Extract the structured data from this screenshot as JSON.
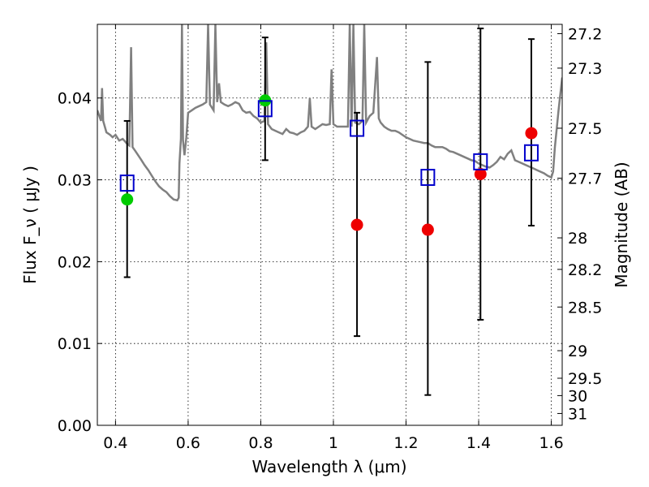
{
  "chart_data": {
    "type": "scatter",
    "xlabel": "Wavelength  λ (μm)",
    "ylabel": "Flux  F_ν  ( μJy )",
    "ylabel_right": "Magnitude (AB)",
    "xlim": [
      0.35,
      1.63
    ],
    "ylim": [
      0.0,
      0.049
    ],
    "grid": true,
    "x_ticks": [
      {
        "v": 0.4,
        "label": "0.4"
      },
      {
        "v": 0.6,
        "label": "0.6"
      },
      {
        "v": 0.8,
        "label": "0.8"
      },
      {
        "v": 1.0,
        "label": "1"
      },
      {
        "v": 1.2,
        "label": "1.2"
      },
      {
        "v": 1.4,
        "label": "1.4"
      },
      {
        "v": 1.6,
        "label": "1.6"
      }
    ],
    "y_ticks": [
      {
        "v": 0.0,
        "label": "0.00"
      },
      {
        "v": 0.01,
        "label": "0.01"
      },
      {
        "v": 0.02,
        "label": "0.02"
      },
      {
        "v": 0.03,
        "label": "0.03"
      },
      {
        "v": 0.04,
        "label": "0.04"
      }
    ],
    "mag_ticks": [
      {
        "mag": 27.2,
        "label": "27.2"
      },
      {
        "mag": 27.3,
        "label": "27.3"
      },
      {
        "mag": 27.5,
        "label": "27.5"
      },
      {
        "mag": 27.7,
        "label": "27.7"
      },
      {
        "mag": 28,
        "label": "28"
      },
      {
        "mag": 28.2,
        "label": "28.2"
      },
      {
        "mag": 28.5,
        "label": "28.5"
      },
      {
        "mag": 29,
        "label": "29"
      },
      {
        "mag": 29.5,
        "label": "29.5"
      },
      {
        "mag": 30,
        "label": "30"
      },
      {
        "mag": 31,
        "label": "31"
      }
    ],
    "series": [
      {
        "kind": "line",
        "color": "#808080",
        "points": [
          [
            0.35,
            0.0385
          ],
          [
            0.36,
            0.0372
          ],
          [
            0.363,
            0.0412
          ],
          [
            0.366,
            0.0372
          ],
          [
            0.375,
            0.0358
          ],
          [
            0.385,
            0.0355
          ],
          [
            0.392,
            0.0352
          ],
          [
            0.4,
            0.0355
          ],
          [
            0.41,
            0.0348
          ],
          [
            0.42,
            0.035
          ],
          [
            0.43,
            0.0345
          ],
          [
            0.438,
            0.0342
          ],
          [
            0.443,
            0.0462
          ],
          [
            0.447,
            0.034
          ],
          [
            0.455,
            0.0335
          ],
          [
            0.47,
            0.0325
          ],
          [
            0.48,
            0.0318
          ],
          [
            0.49,
            0.0312
          ],
          [
            0.5,
            0.0305
          ],
          [
            0.51,
            0.0298
          ],
          [
            0.52,
            0.0292
          ],
          [
            0.53,
            0.0288
          ],
          [
            0.54,
            0.0285
          ],
          [
            0.55,
            0.028
          ],
          [
            0.56,
            0.0276
          ],
          [
            0.57,
            0.0275
          ],
          [
            0.574,
            0.0278
          ],
          [
            0.576,
            0.032
          ],
          [
            0.58,
            0.035
          ],
          [
            0.583,
            0.049
          ],
          [
            0.586,
            0.0348
          ],
          [
            0.59,
            0.033
          ],
          [
            0.595,
            0.0352
          ],
          [
            0.6,
            0.0382
          ],
          [
            0.61,
            0.0385
          ],
          [
            0.62,
            0.0388
          ],
          [
            0.63,
            0.039
          ],
          [
            0.64,
            0.0392
          ],
          [
            0.65,
            0.0395
          ],
          [
            0.655,
            0.049
          ],
          [
            0.66,
            0.0392
          ],
          [
            0.67,
            0.0385
          ],
          [
            0.675,
            0.049
          ],
          [
            0.68,
            0.0395
          ],
          [
            0.685,
            0.0418
          ],
          [
            0.69,
            0.0395
          ],
          [
            0.7,
            0.0392
          ],
          [
            0.71,
            0.039
          ],
          [
            0.72,
            0.0392
          ],
          [
            0.73,
            0.0395
          ],
          [
            0.74,
            0.0393
          ],
          [
            0.75,
            0.0385
          ],
          [
            0.76,
            0.0382
          ],
          [
            0.77,
            0.0383
          ],
          [
            0.78,
            0.0378
          ],
          [
            0.79,
            0.0375
          ],
          [
            0.8,
            0.037
          ],
          [
            0.81,
            0.0372
          ],
          [
            0.815,
            0.0468
          ],
          [
            0.82,
            0.0368
          ],
          [
            0.83,
            0.0362
          ],
          [
            0.84,
            0.036
          ],
          [
            0.85,
            0.0358
          ],
          [
            0.86,
            0.0356
          ],
          [
            0.87,
            0.0362
          ],
          [
            0.88,
            0.0358
          ],
          [
            0.89,
            0.0357
          ],
          [
            0.9,
            0.0355
          ],
          [
            0.91,
            0.0358
          ],
          [
            0.92,
            0.036
          ],
          [
            0.93,
            0.0365
          ],
          [
            0.935,
            0.04
          ],
          [
            0.94,
            0.0365
          ],
          [
            0.95,
            0.0362
          ],
          [
            0.96,
            0.0365
          ],
          [
            0.97,
            0.0368
          ],
          [
            0.98,
            0.0367
          ],
          [
            0.99,
            0.0368
          ],
          [
            0.995,
            0.0435
          ],
          [
            1.0,
            0.0368
          ],
          [
            1.01,
            0.0365
          ],
          [
            1.02,
            0.0365
          ],
          [
            1.03,
            0.0365
          ],
          [
            1.04,
            0.0365
          ],
          [
            1.045,
            0.049
          ],
          [
            1.05,
            0.0365
          ],
          [
            1.055,
            0.049
          ],
          [
            1.06,
            0.037
          ],
          [
            1.07,
            0.0368
          ],
          [
            1.08,
            0.0372
          ],
          [
            1.085,
            0.049
          ],
          [
            1.09,
            0.037
          ],
          [
            1.1,
            0.0378
          ],
          [
            1.11,
            0.0382
          ],
          [
            1.12,
            0.045
          ],
          [
            1.125,
            0.0375
          ],
          [
            1.13,
            0.037
          ],
          [
            1.14,
            0.0365
          ],
          [
            1.15,
            0.0362
          ],
          [
            1.16,
            0.036
          ],
          [
            1.17,
            0.036
          ],
          [
            1.18,
            0.0358
          ],
          [
            1.19,
            0.0355
          ],
          [
            1.2,
            0.0352
          ],
          [
            1.21,
            0.035
          ],
          [
            1.22,
            0.0348
          ],
          [
            1.23,
            0.0347
          ],
          [
            1.24,
            0.0346
          ],
          [
            1.25,
            0.0345
          ],
          [
            1.26,
            0.0345
          ],
          [
            1.27,
            0.0342
          ],
          [
            1.28,
            0.034
          ],
          [
            1.3,
            0.034
          ],
          [
            1.31,
            0.0338
          ],
          [
            1.32,
            0.0335
          ],
          [
            1.33,
            0.0334
          ],
          [
            1.34,
            0.0332
          ],
          [
            1.35,
            0.033
          ],
          [
            1.36,
            0.0328
          ],
          [
            1.37,
            0.0326
          ],
          [
            1.38,
            0.0324
          ],
          [
            1.39,
            0.0323
          ],
          [
            1.4,
            0.032
          ],
          [
            1.41,
            0.0318
          ],
          [
            1.42,
            0.0316
          ],
          [
            1.43,
            0.0315
          ],
          [
            1.44,
            0.0318
          ],
          [
            1.45,
            0.0322
          ],
          [
            1.46,
            0.0328
          ],
          [
            1.47,
            0.0325
          ],
          [
            1.48,
            0.0332
          ],
          [
            1.49,
            0.0336
          ],
          [
            1.5,
            0.0324
          ],
          [
            1.51,
            0.0322
          ],
          [
            1.52,
            0.032
          ],
          [
            1.53,
            0.0318
          ],
          [
            1.54,
            0.0316
          ],
          [
            1.55,
            0.0314
          ],
          [
            1.56,
            0.0312
          ],
          [
            1.57,
            0.031
          ],
          [
            1.58,
            0.0308
          ],
          [
            1.59,
            0.0305
          ],
          [
            1.6,
            0.0303
          ],
          [
            1.605,
            0.031
          ],
          [
            1.61,
            0.034
          ],
          [
            1.62,
            0.0385
          ],
          [
            1.63,
            0.0425
          ]
        ]
      },
      {
        "kind": "squares",
        "color": "#0000cc",
        "points": [
          {
            "x": 0.432,
            "y": 0.0296,
            "lo": 0.0181,
            "hi": 0.0372
          },
          {
            "x": 0.812,
            "y": 0.0387,
            "lo": 0.0324,
            "hi": 0.0474
          },
          {
            "x": 1.065,
            "y": 0.0363,
            "lo": 0.0109,
            "hi": 0.0382
          },
          {
            "x": 1.26,
            "y": 0.0303,
            "lo": 0.0037,
            "hi": 0.0444
          },
          {
            "x": 1.405,
            "y": 0.0322,
            "lo": 0.0129,
            "hi": 0.0485
          },
          {
            "x": 1.545,
            "y": 0.0333,
            "lo": 0.0244,
            "hi": 0.0472
          }
        ]
      },
      {
        "kind": "circles",
        "color": "#00cc00",
        "points": [
          {
            "x": 0.432,
            "y": 0.0276
          },
          {
            "x": 0.812,
            "y": 0.0397
          }
        ]
      },
      {
        "kind": "circles",
        "color": "#ee0000",
        "points": [
          {
            "x": 1.065,
            "y": 0.0245
          },
          {
            "x": 1.26,
            "y": 0.0239
          },
          {
            "x": 1.405,
            "y": 0.0307
          },
          {
            "x": 1.545,
            "y": 0.0357
          }
        ]
      }
    ]
  }
}
